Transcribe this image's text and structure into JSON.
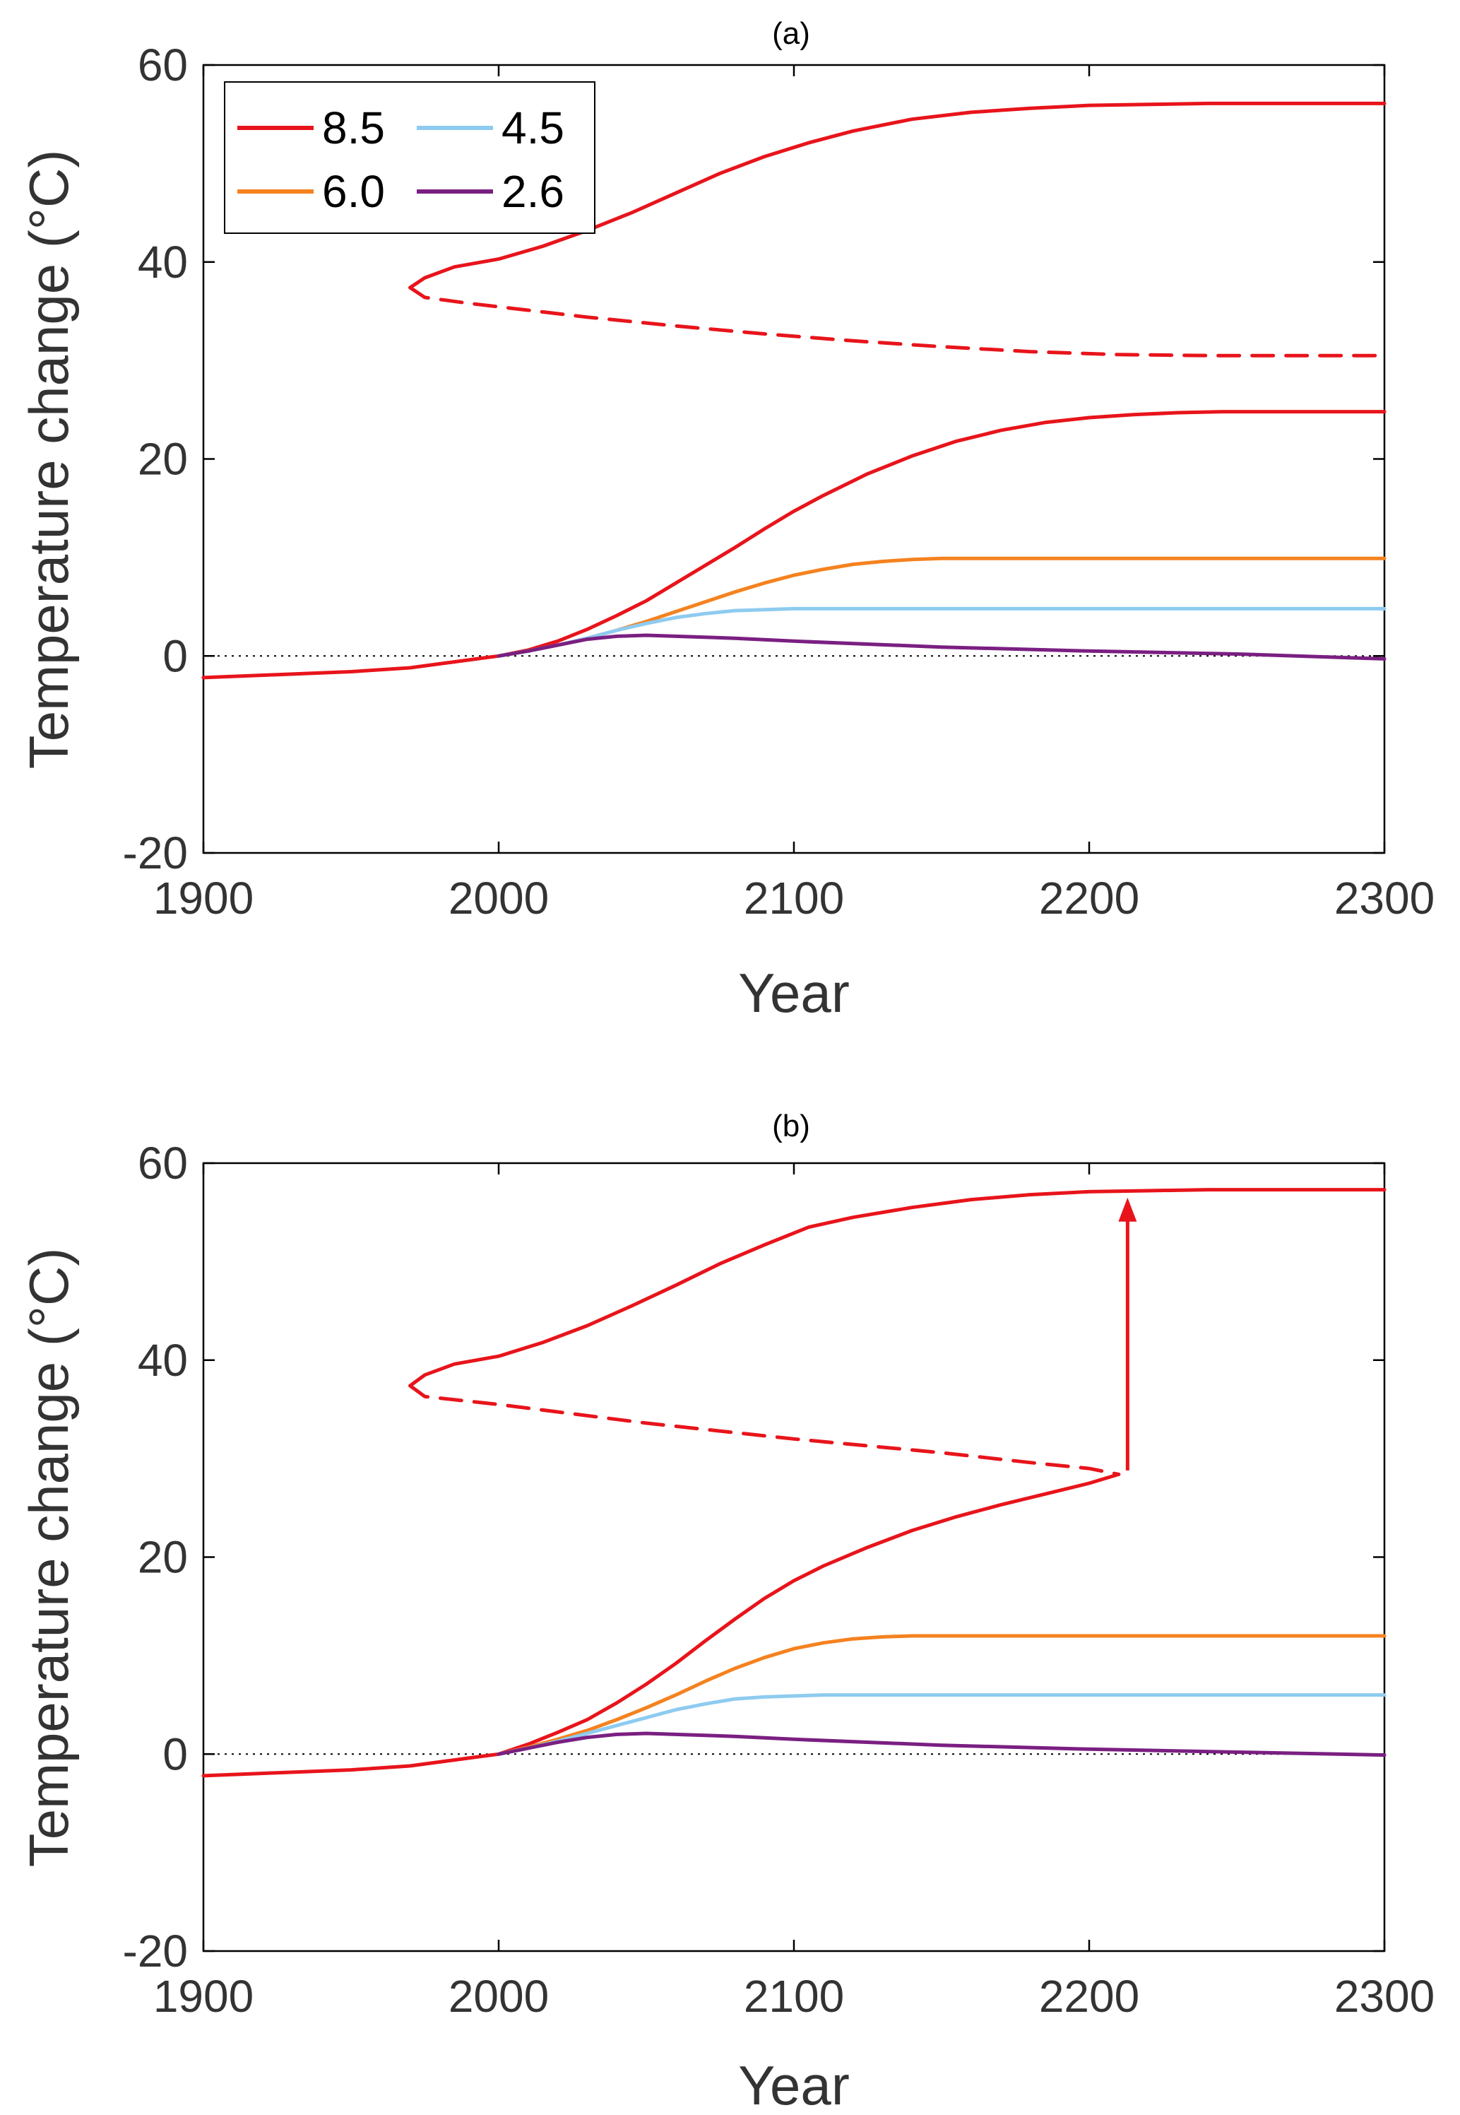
{
  "chart_data": [
    {
      "type": "line",
      "title": "(a)",
      "xlabel": "Year",
      "ylabel": "Temperature change (°C)",
      "xlim": [
        1900,
        2300
      ],
      "ylim": [
        -20,
        60
      ],
      "xticks": [
        1900,
        2000,
        2100,
        2200,
        2300
      ],
      "yticks": [
        -20,
        0,
        20,
        40,
        60
      ],
      "xtick_labels": [
        "1900",
        "2000",
        "2100",
        "2200",
        "2300"
      ],
      "ytick_labels": [
        "-20",
        "0",
        "20",
        "40",
        "60"
      ],
      "zero_reference": "dotted",
      "legend": {
        "location": "top-left",
        "entries": [
          {
            "label": "8.5",
            "color": "#e8141b"
          },
          {
            "label": "4.5",
            "color": "#8ecbf0"
          },
          {
            "label": "6.0",
            "color": "#f5821f"
          },
          {
            "label": "2.6",
            "color": "#7a1f82"
          }
        ]
      },
      "series": [
        {
          "name": "8.5",
          "color": "#e8141b",
          "style": "solid",
          "x": [
            1900,
            1925,
            1950,
            1970,
            1985,
            1995,
            2000,
            2010,
            2020,
            2030,
            2040,
            2050,
            2060,
            2070,
            2080,
            2090,
            2100,
            2110,
            2125,
            2140,
            2155,
            2170,
            2185,
            2200,
            2215,
            2230,
            2245,
            2260,
            2300
          ],
          "y": [
            -2.2,
            -1.9,
            -1.6,
            -1.2,
            -0.6,
            -0.2,
            0.0,
            0.6,
            1.5,
            2.7,
            4.1,
            5.6,
            7.4,
            9.2,
            11.0,
            12.9,
            14.7,
            16.3,
            18.5,
            20.3,
            21.8,
            22.9,
            23.7,
            24.2,
            24.5,
            24.7,
            24.8,
            24.8,
            24.8
          ]
        },
        {
          "name": "8.5 upper branch",
          "color": "#e8141b",
          "style": "solid",
          "x": [
            1970,
            1975,
            1985,
            2000,
            2015,
            2030,
            2045,
            2060,
            2075,
            2090,
            2105,
            2120,
            2140,
            2160,
            2180,
            2200,
            2220,
            2240,
            2260,
            2300
          ],
          "y": [
            37.4,
            38.4,
            39.5,
            40.3,
            41.6,
            43.2,
            45.0,
            47.0,
            49.0,
            50.7,
            52.1,
            53.3,
            54.5,
            55.2,
            55.6,
            55.9,
            56.0,
            56.1,
            56.1,
            56.1
          ]
        },
        {
          "name": "8.5 unstable branch",
          "color": "#e8141b",
          "style": "dashed",
          "x": [
            1970,
            1975,
            1990,
            2010,
            2030,
            2060,
            2090,
            2120,
            2150,
            2180,
            2210,
            2240,
            2270,
            2300
          ],
          "y": [
            37.4,
            36.4,
            35.8,
            35.1,
            34.4,
            33.5,
            32.7,
            32.0,
            31.4,
            30.9,
            30.6,
            30.5,
            30.5,
            30.5
          ]
        },
        {
          "name": "6.0",
          "color": "#f5821f",
          "style": "solid",
          "x": [
            2000,
            2010,
            2020,
            2030,
            2040,
            2050,
            2060,
            2070,
            2080,
            2090,
            2100,
            2110,
            2120,
            2130,
            2140,
            2150,
            2300
          ],
          "y": [
            0.0,
            0.5,
            1.1,
            1.8,
            2.6,
            3.5,
            4.5,
            5.5,
            6.5,
            7.4,
            8.2,
            8.8,
            9.3,
            9.6,
            9.8,
            9.9,
            9.9
          ]
        },
        {
          "name": "4.5",
          "color": "#8ecbf0",
          "style": "solid",
          "x": [
            2000,
            2010,
            2020,
            2030,
            2040,
            2050,
            2060,
            2070,
            2080,
            2090,
            2100,
            2110,
            2300
          ],
          "y": [
            0.0,
            0.5,
            1.1,
            1.8,
            2.6,
            3.3,
            3.9,
            4.3,
            4.6,
            4.7,
            4.8,
            4.8,
            4.8
          ]
        },
        {
          "name": "2.6",
          "color": "#7a1f82",
          "style": "solid",
          "x": [
            2000,
            2010,
            2020,
            2030,
            2040,
            2050,
            2060,
            2080,
            2100,
            2150,
            2200,
            2250,
            2300
          ],
          "y": [
            0.0,
            0.5,
            1.1,
            1.7,
            2.0,
            2.1,
            2.0,
            1.8,
            1.5,
            0.9,
            0.5,
            0.2,
            -0.3
          ]
        }
      ]
    },
    {
      "type": "line",
      "title": "(b)",
      "xlabel": "Year",
      "ylabel": "Temperature change (°C)",
      "xlim": [
        1900,
        2300
      ],
      "ylim": [
        -20,
        60
      ],
      "xticks": [
        1900,
        2000,
        2100,
        2200,
        2300
      ],
      "yticks": [
        -20,
        0,
        20,
        40,
        60
      ],
      "xtick_labels": [
        "1900",
        "2000",
        "2100",
        "2200",
        "2300"
      ],
      "ytick_labels": [
        "-20",
        "0",
        "20",
        "40",
        "60"
      ],
      "zero_reference": "dotted",
      "annotations": [
        {
          "type": "arrow",
          "color": "#e8141b",
          "x": 2213,
          "from_y": 28.8,
          "to_y": 56.5
        }
      ],
      "series": [
        {
          "name": "8.5",
          "color": "#e8141b",
          "style": "solid",
          "x": [
            1900,
            1925,
            1950,
            1970,
            1985,
            1995,
            2000,
            2010,
            2020,
            2030,
            2040,
            2050,
            2060,
            2070,
            2080,
            2090,
            2100,
            2110,
            2125,
            2140,
            2155,
            2170,
            2185,
            2200,
            2210
          ],
          "y": [
            -2.2,
            -1.9,
            -1.6,
            -1.2,
            -0.6,
            -0.2,
            0.0,
            1.0,
            2.2,
            3.5,
            5.2,
            7.1,
            9.2,
            11.5,
            13.7,
            15.8,
            17.6,
            19.1,
            21.0,
            22.7,
            24.1,
            25.3,
            26.4,
            27.5,
            28.4
          ]
        },
        {
          "name": "8.5 upper branch",
          "color": "#e8141b",
          "style": "solid",
          "x": [
            1970,
            1975,
            1985,
            2000,
            2015,
            2030,
            2045,
            2060,
            2075,
            2090,
            2105,
            2120,
            2140,
            2160,
            2180,
            2200,
            2220,
            2240,
            2260,
            2300
          ],
          "y": [
            37.4,
            38.5,
            39.6,
            40.4,
            41.8,
            43.5,
            45.5,
            47.6,
            49.8,
            51.7,
            53.5,
            54.5,
            55.5,
            56.3,
            56.8,
            57.1,
            57.2,
            57.3,
            57.3,
            57.3
          ]
        },
        {
          "name": "8.5 unstable branch",
          "color": "#e8141b",
          "style": "dashed",
          "x": [
            1970,
            1975,
            2000,
            2050,
            2100,
            2150,
            2180,
            2200,
            2210
          ],
          "y": [
            37.4,
            36.3,
            35.5,
            33.6,
            32.0,
            30.6,
            29.6,
            29.0,
            28.4
          ]
        },
        {
          "name": "6.0",
          "color": "#f5821f",
          "style": "solid",
          "x": [
            2000,
            2010,
            2020,
            2030,
            2040,
            2050,
            2060,
            2070,
            2080,
            2090,
            2100,
            2110,
            2120,
            2130,
            2140,
            2150,
            2300
          ],
          "y": [
            0.0,
            0.7,
            1.5,
            2.4,
            3.5,
            4.7,
            6.0,
            7.4,
            8.7,
            9.8,
            10.7,
            11.3,
            11.7,
            11.9,
            12.0,
            12.0,
            12.0
          ]
        },
        {
          "name": "4.5",
          "color": "#8ecbf0",
          "style": "solid",
          "x": [
            2000,
            2010,
            2020,
            2030,
            2040,
            2050,
            2060,
            2070,
            2080,
            2090,
            2100,
            2110,
            2300
          ],
          "y": [
            0.0,
            0.6,
            1.3,
            2.1,
            2.9,
            3.7,
            4.5,
            5.1,
            5.6,
            5.8,
            5.9,
            6.0,
            6.0
          ]
        },
        {
          "name": "2.6",
          "color": "#7a1f82",
          "style": "solid",
          "x": [
            2000,
            2010,
            2020,
            2030,
            2040,
            2050,
            2060,
            2080,
            2100,
            2150,
            2200,
            2250,
            2300
          ],
          "y": [
            0.0,
            0.6,
            1.2,
            1.7,
            2.0,
            2.1,
            2.0,
            1.8,
            1.5,
            0.9,
            0.5,
            0.2,
            -0.1
          ]
        }
      ]
    }
  ]
}
